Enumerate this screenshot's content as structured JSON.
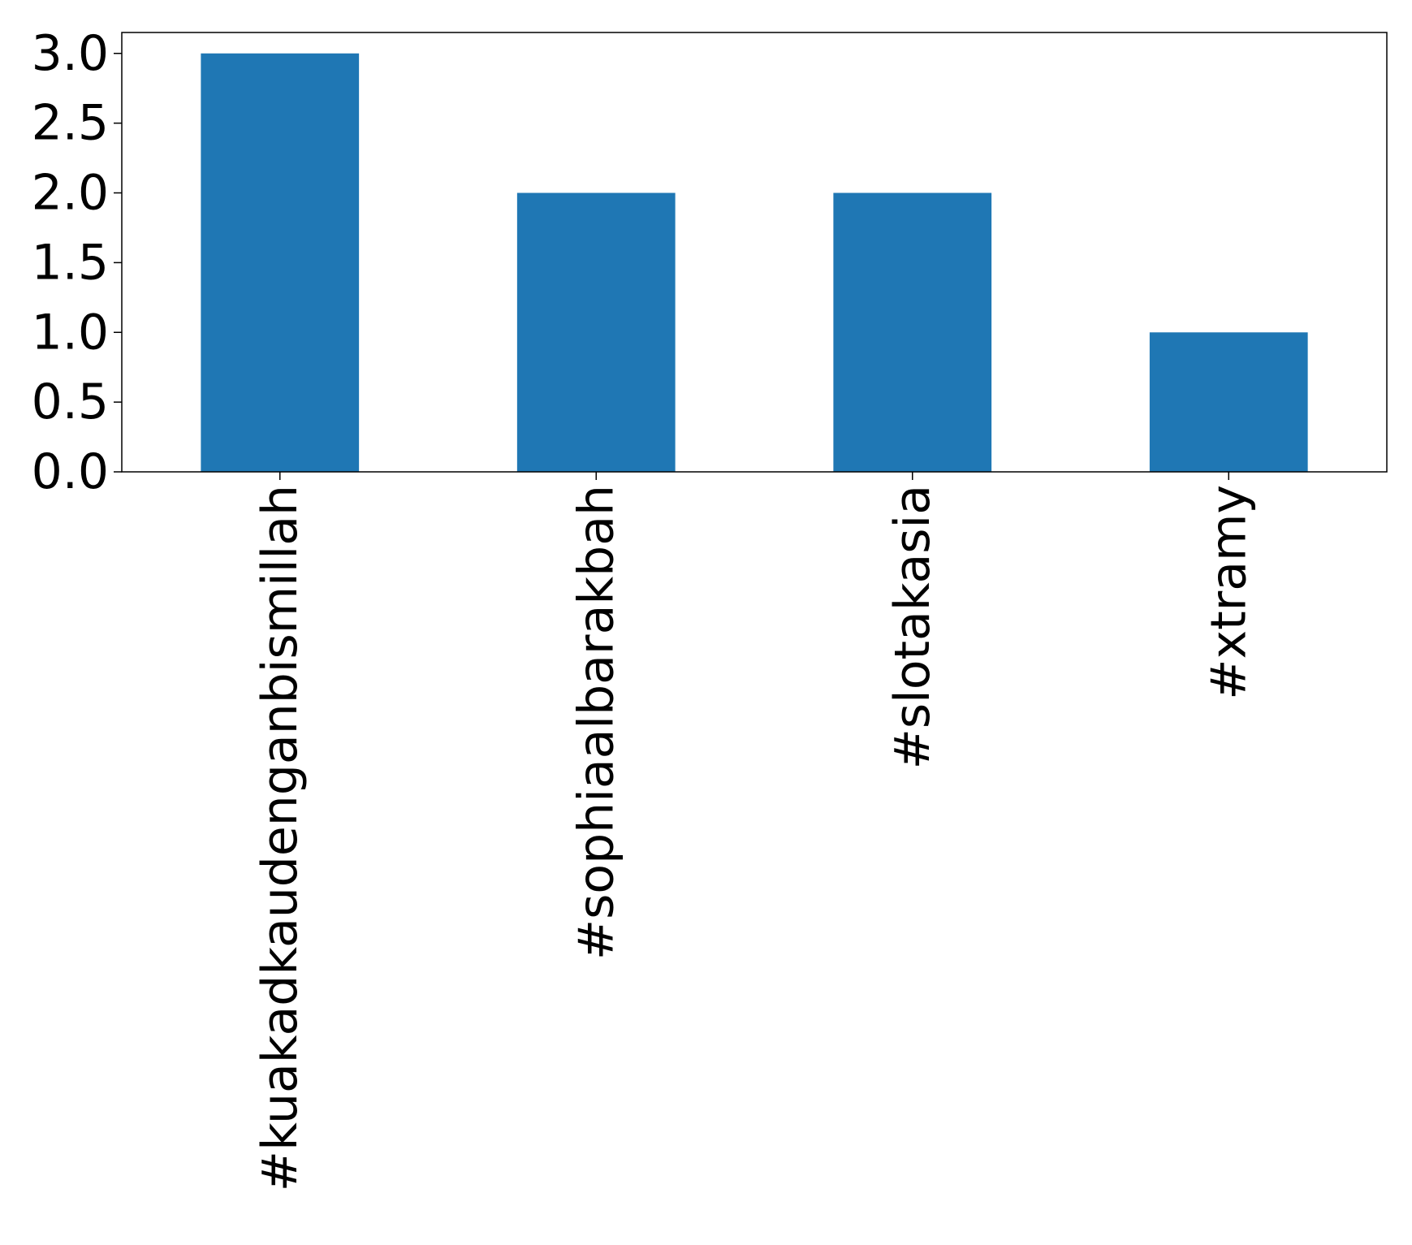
{
  "chart_data": {
    "type": "bar",
    "categories": [
      "#kuakadkaudenganbismillah",
      "#sophiaalbarakbah",
      "#slotakasia",
      "#xtramy"
    ],
    "values": [
      3,
      2,
      2,
      1
    ],
    "color": "#1f77b4",
    "ylim": [
      0,
      3.15
    ],
    "yticks": [
      {
        "value": 0,
        "label": "0.0"
      },
      0.5,
      {
        "value": 1,
        "label": "1.0"
      },
      1.5,
      {
        "value": 2,
        "label": "2.0"
      },
      2.5,
      {
        "value": 3,
        "label": "3.0"
      }
    ],
    "grid": false
  }
}
